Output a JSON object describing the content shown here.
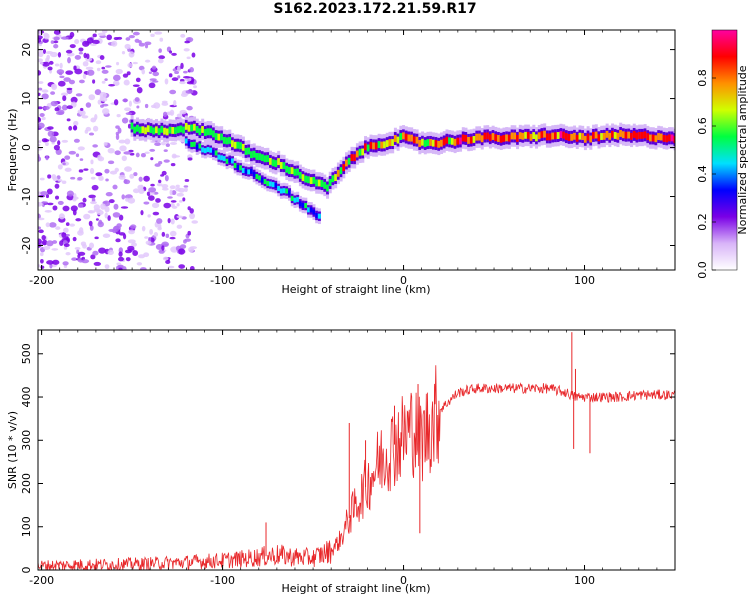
{
  "title": "S162.2023.172.21.59.R17",
  "colors": {
    "snr_line": "#e8272a",
    "frame": "#000000",
    "background": "#ffffff"
  },
  "chart_data": [
    {
      "type": "heatmap",
      "xlabel": "Height of straight line (km)",
      "ylabel": "Frequency (Hz)",
      "xlim": [
        -202,
        150
      ],
      "ylim": [
        -25,
        24
      ],
      "xticks": [
        -200,
        -100,
        0,
        100
      ],
      "xtick_labels": [
        "-200",
        "-100",
        "0",
        "100"
      ],
      "yticks": [
        20,
        10,
        0,
        -10,
        -20
      ],
      "ytick_labels": [
        "20",
        "10",
        "0",
        "-10",
        "-20"
      ],
      "colorbar": {
        "label": "Normalized spectral amplitude",
        "range": [
          0,
          1
        ],
        "ticks": [
          0,
          0.2,
          0.4,
          0.6,
          0.8
        ],
        "tick_labels": [
          "0.0",
          "0.2",
          "0.4",
          "0.6",
          "0.8"
        ],
        "colormap": [
          "#ffffff",
          "#d8b4f8",
          "#7a00e6",
          "#0000ff",
          "#00e0ff",
          "#00ff40",
          "#d0ff00",
          "#ff9000",
          "#ff0000",
          "#ff00a0"
        ]
      },
      "main_trace": [
        [
          -150,
          4
        ],
        [
          -140,
          3.5
        ],
        [
          -130,
          3.5
        ],
        [
          -120,
          4
        ],
        [
          -110,
          3.5
        ],
        [
          -100,
          2
        ],
        [
          -90,
          0
        ],
        [
          -80,
          -2
        ],
        [
          -70,
          -3
        ],
        [
          -60,
          -5
        ],
        [
          -50,
          -7
        ],
        [
          -42,
          -8
        ],
        [
          -35,
          -5
        ],
        [
          -28,
          -2
        ],
        [
          -20,
          0
        ],
        [
          -10,
          1
        ],
        [
          0,
          2
        ],
        [
          10,
          1
        ],
        [
          20,
          1
        ],
        [
          40,
          2
        ],
        [
          60,
          2
        ],
        [
          80,
          2.5
        ],
        [
          100,
          2
        ],
        [
          120,
          2.5
        ],
        [
          150,
          2
        ]
      ],
      "secondary_trace": [
        [
          -120,
          1
        ],
        [
          -105,
          -1
        ],
        [
          -95,
          -3
        ],
        [
          -85,
          -5
        ],
        [
          -75,
          -7
        ],
        [
          -65,
          -9
        ],
        [
          -55,
          -12
        ],
        [
          -46,
          -14
        ]
      ],
      "noise_region": [
        -202,
        -115
      ]
    },
    {
      "type": "line",
      "xlabel": "Height of straight line (km)",
      "ylabel": "SNR (10 * v/v)",
      "xlim": [
        -202,
        150
      ],
      "ylim": [
        0,
        555
      ],
      "xticks": [
        -200,
        -100,
        0,
        100
      ],
      "xtick_labels": [
        "-200",
        "-100",
        "0",
        "100"
      ],
      "yticks": [
        0,
        100,
        200,
        300,
        400,
        500
      ],
      "ytick_labels": [
        "0",
        "100",
        "200",
        "300",
        "400",
        "500"
      ],
      "series": [
        {
          "x": [
            -202,
            -180,
            -160,
            -140,
            -120,
            -110,
            -100,
            -90,
            -80,
            -70,
            -60,
            -50,
            -40,
            -35,
            -30,
            -25,
            -20,
            -15,
            -10,
            -5,
            0,
            5,
            10,
            15,
            20,
            25,
            30,
            40,
            60,
            80,
            90,
            95,
            100,
            110,
            120,
            130,
            150
          ],
          "y": [
            10,
            12,
            13,
            15,
            18,
            20,
            22,
            25,
            30,
            35,
            30,
            28,
            45,
            70,
            120,
            160,
            200,
            240,
            270,
            290,
            310,
            330,
            300,
            340,
            370,
            390,
            410,
            420,
            420,
            420,
            410,
            400,
            400,
            400,
            400,
            405,
            405
          ],
          "spikes": [
            [
              -76,
              110
            ],
            [
              -30,
              340
            ],
            [
              -21,
              300
            ],
            [
              -5,
              380
            ],
            [
              8,
              430
            ],
            [
              9,
              85
            ],
            [
              93,
              550
            ],
            [
              94,
              280
            ],
            [
              103,
              270
            ],
            [
              95,
              465
            ]
          ]
        }
      ]
    }
  ]
}
